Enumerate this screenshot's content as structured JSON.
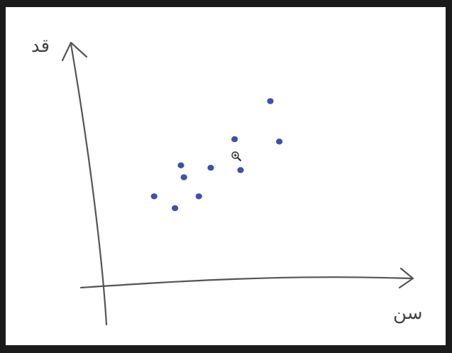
{
  "chart_data": {
    "type": "scatter",
    "xlabel": "سن",
    "ylabel": "قد",
    "xlim": [
      0,
      10
    ],
    "ylim": [
      0,
      10
    ],
    "grid": false,
    "legend": "none",
    "points": [
      {
        "x": 1.6,
        "y": 3.6
      },
      {
        "x": 2.3,
        "y": 3.1
      },
      {
        "x": 2.5,
        "y": 4.9
      },
      {
        "x": 2.6,
        "y": 4.4
      },
      {
        "x": 3.1,
        "y": 3.6
      },
      {
        "x": 3.5,
        "y": 4.8
      },
      {
        "x": 4.3,
        "y": 6.0
      },
      {
        "x": 4.5,
        "y": 4.7
      },
      {
        "x": 5.5,
        "y": 7.6
      },
      {
        "x": 5.8,
        "y": 5.9
      }
    ],
    "colors": {
      "points": "#3f51a8",
      "axes": "#555555"
    }
  },
  "cursor": {
    "icon": "zoom-in-cursor-icon"
  }
}
